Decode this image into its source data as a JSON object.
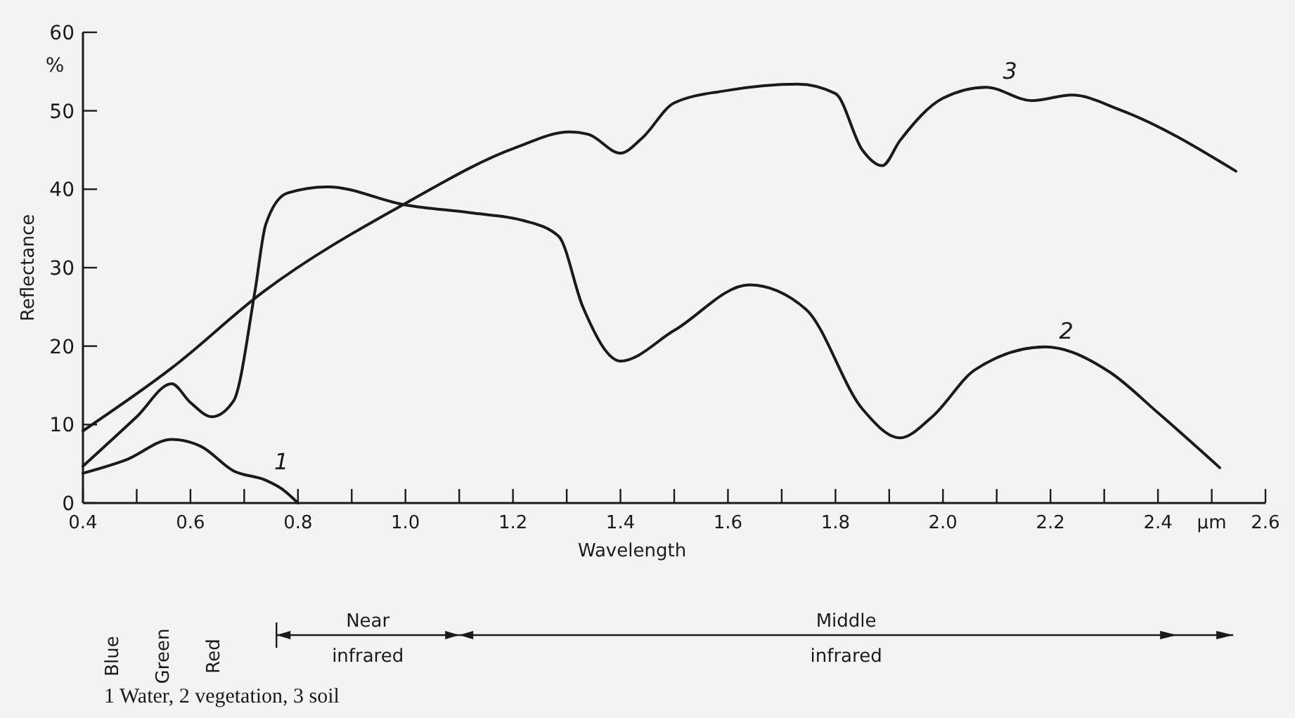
{
  "chart_data": {
    "type": "line",
    "xlabel": "Wavelength",
    "ylabel": "Reflectance",
    "xlim": [
      0.4,
      2.6
    ],
    "ylim": [
      0,
      60
    ],
    "xticks": [
      0.4,
      {
        "value": 0.5,
        "label": null
      },
      0.6,
      {
        "value": 0.7,
        "label": null
      },
      0.8,
      {
        "value": 0.9,
        "label": null
      },
      {
        "value": 1,
        "label": "1.0"
      },
      {
        "value": 1.1,
        "label": null
      },
      1.2,
      {
        "value": 1.3,
        "label": null
      },
      1.4,
      {
        "value": 1.5,
        "label": null
      },
      1.6,
      {
        "value": 1.7,
        "label": null
      },
      1.8,
      {
        "value": 1.9,
        "label": null
      },
      {
        "value": 2,
        "label": "2.0"
      },
      {
        "value": 2.1,
        "label": null
      },
      2.2,
      {
        "value": 2.3,
        "label": null
      },
      2.4,
      {
        "value": 2.5,
        "label": "μm"
      },
      2.6
    ],
    "yticks": [
      0,
      10,
      20,
      30,
      40,
      50,
      60
    ],
    "grid": false,
    "legend": false,
    "marker": "none",
    "line_style": "solid",
    "series": [
      {
        "name": "1",
        "color": "#1a1a1a",
        "x": [
          0.4,
          0.48,
          0.565,
          0.62,
          0.68,
          0.74,
          0.77,
          0.8
        ],
        "values": [
          3.8,
          5.5,
          8.1,
          7.2,
          4.1,
          2.9,
          1.8,
          0
        ]
      },
      {
        "name": "2",
        "color": "#1a1a1a",
        "x": [
          0.4,
          0.5,
          0.565,
          0.6,
          0.64,
          0.68,
          0.72,
          0.74,
          0.78,
          0.855,
          1.0,
          1.12,
          1.22,
          1.285,
          1.33,
          1.4,
          1.5,
          1.64,
          1.745,
          1.85,
          1.92,
          1.98,
          2.06,
          2.19,
          2.31,
          2.4,
          2.515
        ],
        "values": [
          4.7,
          11,
          15.2,
          12.8,
          11,
          13,
          27,
          35.5,
          39.5,
          40.3,
          38,
          37,
          36,
          34,
          25,
          18.1,
          22,
          27.8,
          24.7,
          12,
          8.3,
          11,
          17,
          19.9,
          16.7,
          11.5,
          4.5
        ]
      },
      {
        "name": "3",
        "color": "#1a1a1a",
        "x": [
          0.4,
          0.565,
          0.735,
          1.0,
          1.205,
          1.305,
          1.34,
          1.4,
          1.44,
          1.5,
          1.6,
          1.73,
          1.8,
          1.85,
          1.887,
          1.92,
          2.0,
          2.08,
          2.165,
          2.24,
          2.33,
          2.545
        ],
        "values": [
          9.2,
          17.2,
          26.9,
          38.2,
          45.3,
          47.3,
          47,
          44.6,
          46.5,
          51,
          52.6,
          53.4,
          52.2,
          45,
          43,
          46.2,
          51.6,
          53,
          51.3,
          52,
          50.1,
          42.3
        ]
      }
    ],
    "annotations": [
      "%",
      "Blue",
      "Green",
      "Red",
      "Near infrared",
      "Middle infrared",
      "1 Water, 2 vegetation, 3 soil"
    ]
  }
}
